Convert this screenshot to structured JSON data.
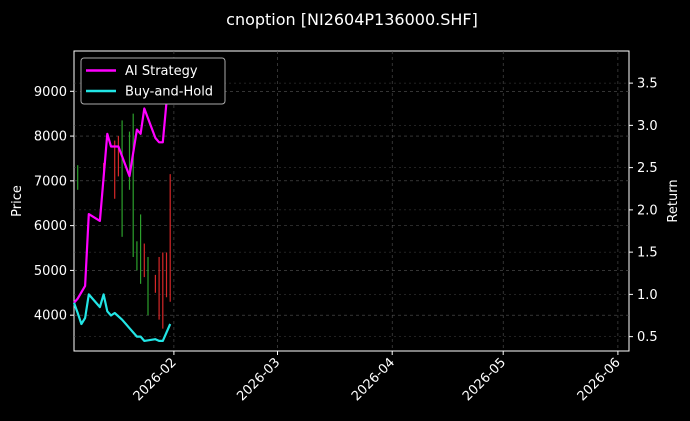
{
  "chart_data": {
    "type": "line",
    "title": "cnoption [NI2604P136000.SHF]",
    "ylabel_left": "Price",
    "ylabel_right": "Return",
    "x_ticks": [
      "2026-02",
      "2026-03",
      "2026-04",
      "2026-05",
      "2026-06"
    ],
    "x_tick_dates": [
      "2026-02-01",
      "2026-03-01",
      "2026-04-01",
      "2026-05-01",
      "2026-06-01"
    ],
    "xlim": [
      "2026-01-05",
      "2026-06-04"
    ],
    "y_left_ticks": [
      4000,
      5000,
      6000,
      7000,
      8000,
      9000
    ],
    "y_left_lim": [
      3200,
      9900
    ],
    "y_right_ticks": [
      0.5,
      1.0,
      1.5,
      2.0,
      2.5,
      3.0,
      3.5
    ],
    "y_right_lim": [
      0.33,
      3.88
    ],
    "grid": true,
    "legend_position": "top-left",
    "candles": [
      {
        "date": "2026-01-06",
        "low": 6800,
        "high": 7350,
        "color": "#2ca02c"
      },
      {
        "date": "2026-01-13",
        "low": 7150,
        "high": 7400,
        "color": "#d62728"
      },
      {
        "date": "2026-01-16",
        "low": 6600,
        "high": 7900,
        "color": "#d62728"
      },
      {
        "date": "2026-01-17",
        "low": 7100,
        "high": 8000,
        "color": "#d62728"
      },
      {
        "date": "2026-01-18",
        "low": 5750,
        "high": 8350,
        "color": "#2ca02c"
      },
      {
        "date": "2026-01-20",
        "low": 6800,
        "high": 8100,
        "color": "#2ca02c"
      },
      {
        "date": "2026-01-21",
        "low": 5300,
        "high": 8500,
        "color": "#2ca02c"
      },
      {
        "date": "2026-01-22",
        "low": 5000,
        "high": 5650,
        "color": "#2ca02c"
      },
      {
        "date": "2026-01-23",
        "low": 4700,
        "high": 6250,
        "color": "#2ca02c"
      },
      {
        "date": "2026-01-24",
        "low": 4850,
        "high": 5600,
        "color": "#d62728"
      },
      {
        "date": "2026-01-25",
        "low": 4000,
        "high": 5300,
        "color": "#2ca02c"
      },
      {
        "date": "2026-01-27",
        "low": 4500,
        "high": 4900,
        "color": "#d62728"
      },
      {
        "date": "2026-01-28",
        "low": 3900,
        "high": 5300,
        "color": "#d62728"
      },
      {
        "date": "2026-01-29",
        "low": 3700,
        "high": 5400,
        "color": "#d62728"
      },
      {
        "date": "2026-01-30",
        "low": 4400,
        "high": 5400,
        "color": "#d62728"
      },
      {
        "date": "2026-01-31",
        "low": 4300,
        "high": 7150,
        "color": "#d62728"
      }
    ],
    "series": [
      {
        "name": "AI Strategy",
        "color": "#ff00ff",
        "axis": "right",
        "x": [
          "2026-01-05",
          "2026-01-06",
          "2026-01-08",
          "2026-01-09",
          "2026-01-12",
          "2026-01-14",
          "2026-01-15",
          "2026-01-17",
          "2026-01-20",
          "2026-01-22",
          "2026-01-23",
          "2026-01-24",
          "2026-01-27",
          "2026-01-28",
          "2026-01-29",
          "2026-01-31"
        ],
        "values": [
          0.9,
          0.95,
          1.1,
          1.95,
          1.87,
          2.9,
          2.75,
          2.75,
          2.4,
          2.95,
          2.9,
          3.2,
          2.85,
          2.8,
          2.8,
          3.75
        ]
      },
      {
        "name": "Buy-and-Hold",
        "color": "#22e5e5",
        "axis": "right",
        "x": [
          "2026-01-05",
          "2026-01-06",
          "2026-01-07",
          "2026-01-08",
          "2026-01-09",
          "2026-01-12",
          "2026-01-13",
          "2026-01-14",
          "2026-01-15",
          "2026-01-16",
          "2026-01-18",
          "2026-01-20",
          "2026-01-22",
          "2026-01-23",
          "2026-01-24",
          "2026-01-27",
          "2026-01-28",
          "2026-01-29",
          "2026-01-31"
        ],
        "values": [
          0.9,
          0.78,
          0.65,
          0.72,
          1.0,
          0.85,
          1.0,
          0.8,
          0.75,
          0.78,
          0.7,
          0.6,
          0.5,
          0.5,
          0.45,
          0.47,
          0.45,
          0.45,
          0.65
        ]
      }
    ]
  }
}
